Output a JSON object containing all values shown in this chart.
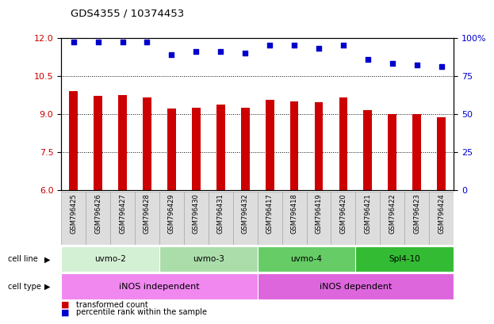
{
  "title": "GDS4355 / 10374453",
  "samples": [
    "GSM796425",
    "GSM796426",
    "GSM796427",
    "GSM796428",
    "GSM796429",
    "GSM796430",
    "GSM796431",
    "GSM796432",
    "GSM796417",
    "GSM796418",
    "GSM796419",
    "GSM796420",
    "GSM796421",
    "GSM796422",
    "GSM796423",
    "GSM796424"
  ],
  "transformed_count": [
    9.9,
    9.7,
    9.75,
    9.65,
    9.2,
    9.25,
    9.35,
    9.25,
    9.55,
    9.5,
    9.45,
    9.65,
    9.15,
    9.0,
    9.0,
    8.85
  ],
  "percentile_rank": [
    97,
    97,
    97,
    97,
    89,
    91,
    91,
    90,
    95,
    95,
    93,
    95,
    86,
    83,
    82,
    81
  ],
  "ylim_left": [
    6,
    12
  ],
  "ylim_right": [
    0,
    100
  ],
  "yticks_left": [
    6,
    7.5,
    9,
    10.5,
    12
  ],
  "yticks_right": [
    0,
    25,
    50,
    75,
    100
  ],
  "cell_line_groups": [
    {
      "label": "uvmo-2",
      "start": 0,
      "end": 4,
      "color": "#d4f0d4"
    },
    {
      "label": "uvmo-3",
      "start": 4,
      "end": 8,
      "color": "#aaddaa"
    },
    {
      "label": "uvmo-4",
      "start": 8,
      "end": 12,
      "color": "#66cc66"
    },
    {
      "label": "Spl4-10",
      "start": 12,
      "end": 16,
      "color": "#33bb33"
    }
  ],
  "cell_type_groups": [
    {
      "label": "iNOS independent",
      "start": 0,
      "end": 8,
      "color": "#f088f0"
    },
    {
      "label": "iNOS dependent",
      "start": 8,
      "end": 16,
      "color": "#dd66dd"
    }
  ],
  "bar_color": "#cc0000",
  "dot_color": "#0000cc",
  "grid_color": "#000000",
  "left_axis_color": "#cc0000",
  "right_axis_color": "#0000cc",
  "sample_box_color": "#dddddd",
  "legend_items": [
    {
      "label": "transformed count",
      "color": "#cc0000"
    },
    {
      "label": "percentile rank within the sample",
      "color": "#0000cc"
    }
  ]
}
